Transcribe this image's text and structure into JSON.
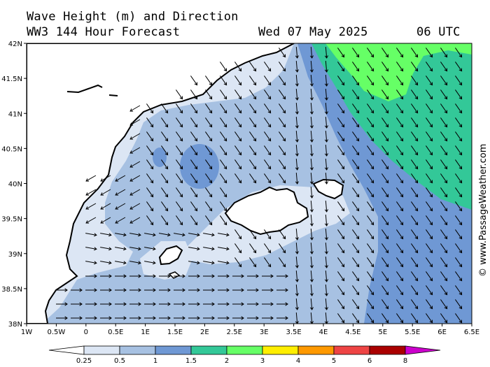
{
  "header": {
    "line1": "Wave Height (m) and Direction",
    "line2": "WW3 144 Hour Forecast",
    "date": "Wed 07 May 2025",
    "time": "06 UTC"
  },
  "credit": "© www.PassageWeather.com",
  "map": {
    "lat_labels": [
      "42N",
      "41.5N",
      "41N",
      "40.5N",
      "40N",
      "39.5N",
      "39N",
      "38.5N",
      "38N"
    ],
    "lon_labels": [
      "1W",
      "0.5W",
      "0",
      "0.5E",
      "1E",
      "1.5E",
      "2E",
      "2.5E",
      "3E",
      "3.5E",
      "4E",
      "4.5E",
      "5E",
      "5.5E",
      "6E",
      "6.5E"
    ]
  },
  "legend": {
    "colors": [
      "#ffffff",
      "#dce6f4",
      "#a7c1e2",
      "#6f98d4",
      "#33c898",
      "#66ff66",
      "#ffee00",
      "#ff9900",
      "#ee4444",
      "#aa0000",
      "#cc00cc"
    ],
    "labels": [
      "0.25",
      "0.5",
      "1",
      "1.5",
      "2",
      "3",
      "4",
      "5",
      "6",
      "8"
    ]
  }
}
